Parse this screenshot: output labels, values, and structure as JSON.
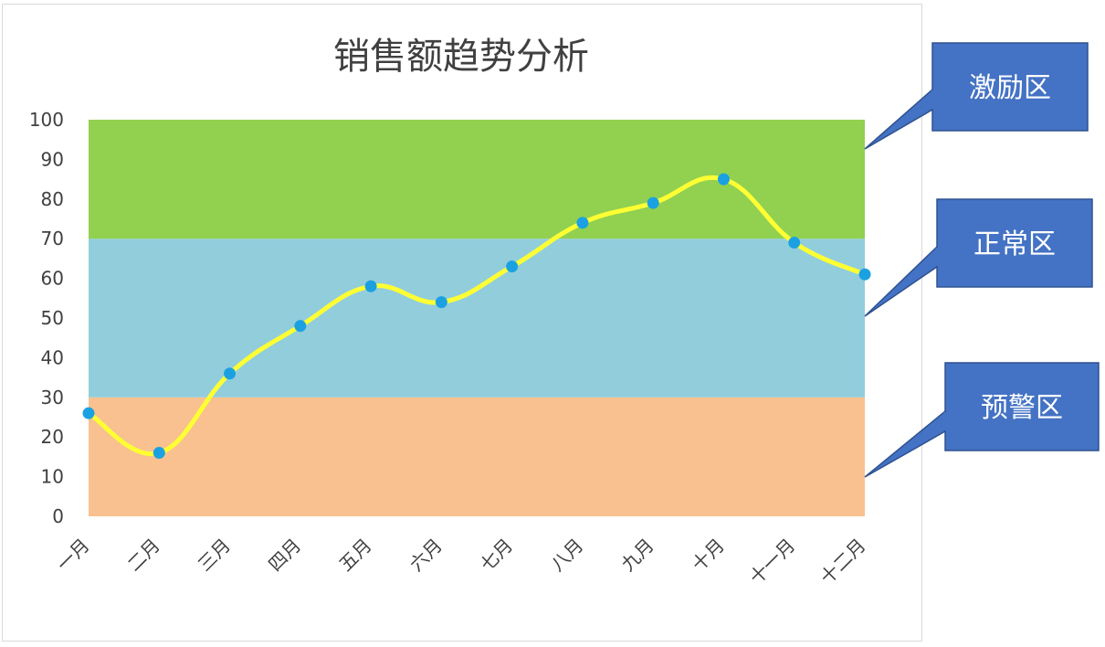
{
  "chart_data": {
    "type": "line",
    "title": "销售额趋势分析",
    "categories": [
      "一月",
      "二月",
      "三月",
      "四月",
      "五月",
      "六月",
      "七月",
      "八月",
      "九月",
      "十月",
      "十一月",
      "十二月"
    ],
    "series": [
      {
        "values": [
          26,
          16,
          36,
          48,
          58,
          54,
          63,
          74,
          79,
          85,
          69,
          61
        ],
        "color": "#ffff33",
        "marker_color": "#1ba1e2"
      }
    ],
    "ylim": [
      0,
      100
    ],
    "yticks": [
      0,
      10,
      20,
      30,
      40,
      50,
      60,
      70,
      80,
      90,
      100
    ],
    "grid": false,
    "zones": [
      {
        "name": "预警区",
        "from": 0,
        "to": 30,
        "color": "#f8c18f"
      },
      {
        "name": "正常区",
        "from": 30,
        "to": 70,
        "color": "#92cddc"
      },
      {
        "name": "激励区",
        "from": 70,
        "to": 100,
        "color": "#92d050"
      }
    ],
    "callout_color": "#4472c4"
  }
}
